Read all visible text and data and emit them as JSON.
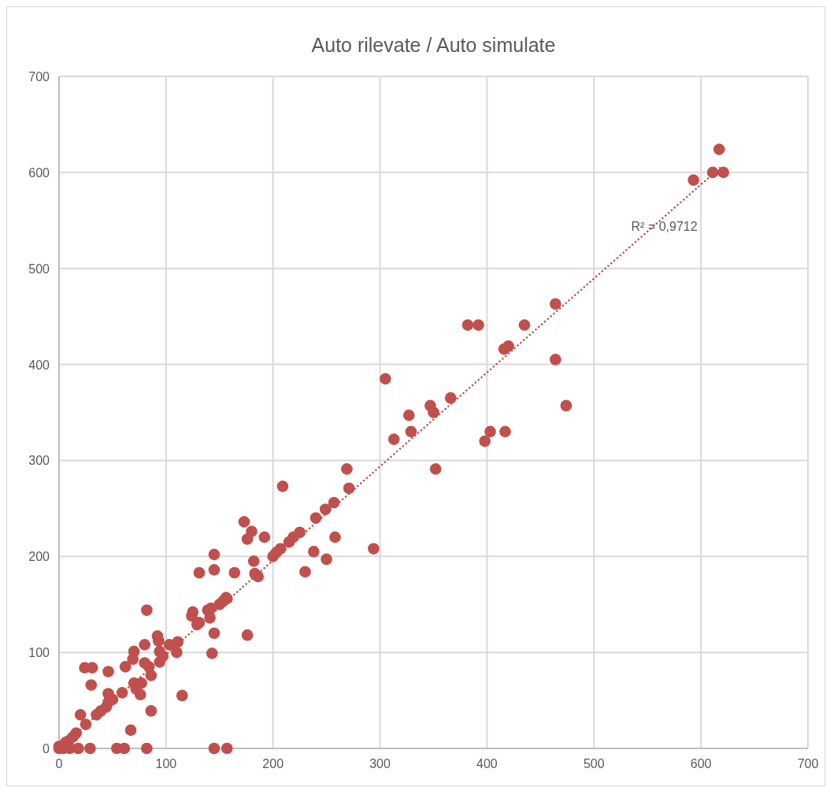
{
  "chart_data": {
    "type": "scatter",
    "title": "Auto rilevate / Auto simulate",
    "xlim": [
      0,
      700
    ],
    "ylim": [
      0,
      700
    ],
    "xticks": [
      0,
      100,
      200,
      300,
      400,
      500,
      600,
      700
    ],
    "yticks": [
      0,
      100,
      200,
      300,
      400,
      500,
      600,
      700
    ],
    "grid": true,
    "marker": "circle",
    "series": [
      {
        "color": "#c0504d",
        "x": [
          617,
          611,
          621,
          593,
          464,
          382,
          392,
          435,
          416,
          420,
          464,
          305,
          366,
          347,
          350,
          327,
          474,
          329,
          313,
          403,
          417,
          398,
          352,
          269,
          271,
          209,
          257,
          249,
          240,
          258,
          294,
          225,
          219,
          215,
          207,
          203,
          200,
          238,
          250,
          230,
          173,
          180,
          176,
          192,
          145,
          145,
          131,
          164,
          182,
          183,
          186,
          156,
          82,
          157,
          153,
          150,
          142,
          139,
          125,
          124,
          131,
          129,
          141,
          145,
          176,
          92,
          93,
          80,
          103,
          111,
          143,
          70,
          110,
          94,
          97,
          94,
          24,
          31,
          46,
          62,
          69,
          80,
          84,
          86,
          30,
          70,
          77,
          72,
          76,
          59,
          46,
          50,
          46,
          44,
          39,
          35,
          115,
          20,
          86,
          25,
          67,
          16,
          13,
          9,
          6,
          0,
          0,
          4,
          10,
          18,
          29,
          54,
          61,
          82,
          145,
          157
        ],
        "values": [
          624,
          600,
          600,
          592,
          463,
          441,
          441,
          441,
          416,
          419,
          405,
          385,
          365,
          357,
          350,
          347,
          357,
          330,
          322,
          330,
          330,
          320,
          291,
          291,
          271,
          273,
          256,
          249,
          240,
          220,
          208,
          225,
          220,
          215,
          208,
          204,
          200,
          205,
          197,
          184,
          236,
          226,
          218,
          220,
          202,
          186,
          183,
          183,
          195,
          182,
          179,
          157,
          144,
          156,
          153,
          150,
          146,
          144,
          142,
          138,
          131,
          129,
          136,
          120,
          118,
          117,
          112,
          108,
          108,
          111,
          99,
          101,
          100,
          101,
          96,
          90,
          84,
          84,
          80,
          85,
          93,
          89,
          85,
          76,
          66,
          68,
          68,
          62,
          56,
          58,
          57,
          51,
          48,
          43,
          39,
          35,
          55,
          35,
          39,
          25,
          19,
          16,
          12,
          8,
          6,
          2,
          0,
          0,
          0,
          0,
          0,
          0,
          0,
          0,
          0,
          0
        ]
      },
      {
        "type": "line",
        "color": "#c0504d",
        "line_style": "dotted",
        "marker": "none",
        "x": [
          0,
          620
        ],
        "values": [
          0,
          607
        ]
      }
    ],
    "annotations": [
      "R² = 0,9712"
    ]
  }
}
